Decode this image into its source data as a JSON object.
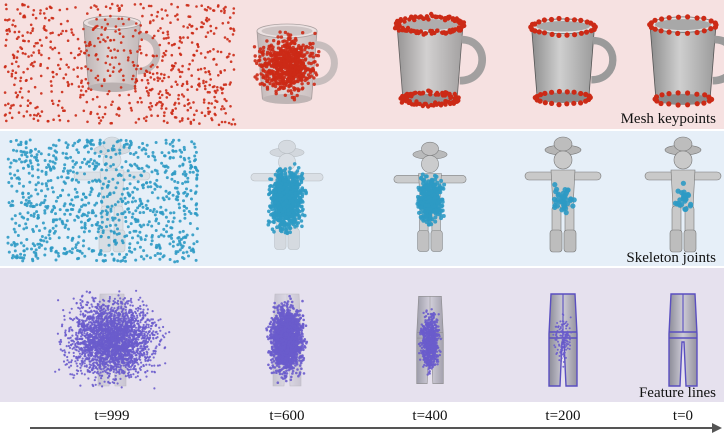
{
  "rows": [
    {
      "label": "Mesh keypoints",
      "point_color": "#cc2a16",
      "object": "mug"
    },
    {
      "label": "Skeleton joints",
      "point_color": "#2e9ac4",
      "object": "humanoid-figure"
    },
    {
      "label": "Feature lines",
      "point_color": "#6a5ccc",
      "object": "jumpsuit-garment"
    }
  ],
  "timesteps": [
    "t=999",
    "t=600",
    "t=400",
    "t=200",
    "t=0"
  ],
  "colors": {
    "mesh_band": "#f6e1e1",
    "skeleton_band": "#e6eff8",
    "feature_band": "#e6e1ee",
    "arrow": "#555555"
  }
}
